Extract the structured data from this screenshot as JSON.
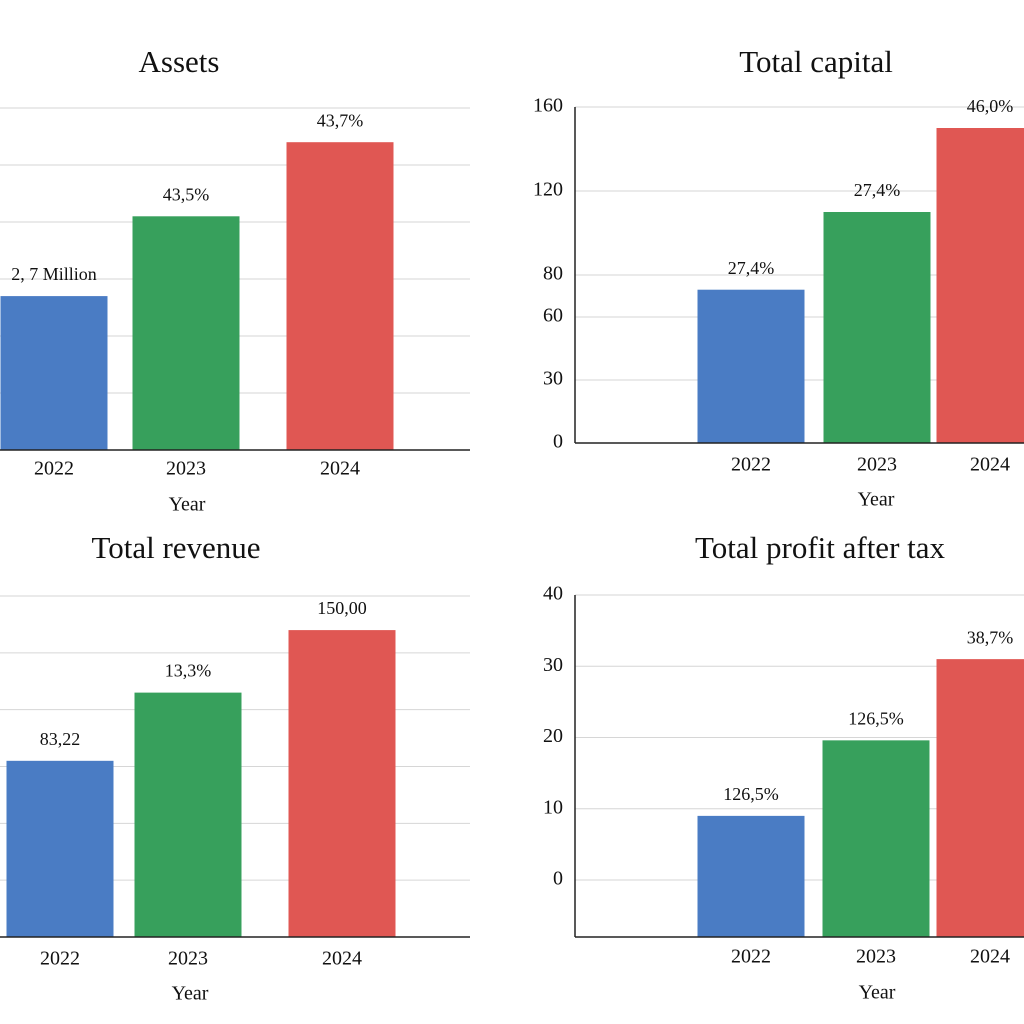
{
  "chart_data": [
    {
      "type": "bar",
      "title": "Assets",
      "xlabel": "Year",
      "categories": [
        "2022",
        "2023",
        "2024"
      ],
      "values": [
        2.7,
        4.1,
        5.4
      ],
      "value_labels": [
        "2, 7 Million",
        "43,5%",
        "43,7%"
      ],
      "colors": [
        "#4a7cc4",
        "#37a05c",
        "#e05753"
      ],
      "ylim": [
        0,
        6
      ],
      "yticks": [
        0,
        1,
        2,
        3,
        4,
        5,
        6
      ],
      "grid": true,
      "ytick_labels": false
    },
    {
      "type": "bar",
      "title": "Total capital",
      "xlabel": "Year",
      "categories": [
        "2022",
        "2023",
        "2024"
      ],
      "values": [
        73,
        110,
        150
      ],
      "value_labels": [
        "27,4%",
        "27,4%",
        "46,0%"
      ],
      "colors": [
        "#4a7cc4",
        "#37a05c",
        "#e05753"
      ],
      "ylim": [
        0,
        160
      ],
      "yticks": [
        0,
        30,
        60,
        80,
        120,
        160
      ],
      "grid": true,
      "ytick_labels": true
    },
    {
      "type": "bar",
      "title": "Total revenue",
      "xlabel": "Year",
      "categories": [
        "2022",
        "2023",
        "2024"
      ],
      "values": [
        3.1,
        4.3,
        5.4
      ],
      "value_labels": [
        "83,22",
        "13,3%",
        "150,00"
      ],
      "colors": [
        "#4a7cc4",
        "#37a05c",
        "#e05753"
      ],
      "ylim": [
        0,
        6
      ],
      "yticks": [
        0,
        1,
        2,
        3,
        4,
        5,
        6
      ],
      "grid": true,
      "ytick_labels": false
    },
    {
      "type": "bar",
      "title": "Total profit after tax",
      "xlabel": "Year",
      "categories": [
        "2022",
        "2023",
        "2024"
      ],
      "values": [
        9,
        19.6,
        31
      ],
      "value_labels": [
        "126,5%",
        "126,5%",
        "38,7%"
      ],
      "colors": [
        "#4a7cc4",
        "#37a05c",
        "#e05753"
      ],
      "ylim": [
        -8,
        40
      ],
      "yticks": [
        0,
        10,
        20,
        30,
        40
      ],
      "grid": true,
      "ytick_labels": true
    }
  ]
}
